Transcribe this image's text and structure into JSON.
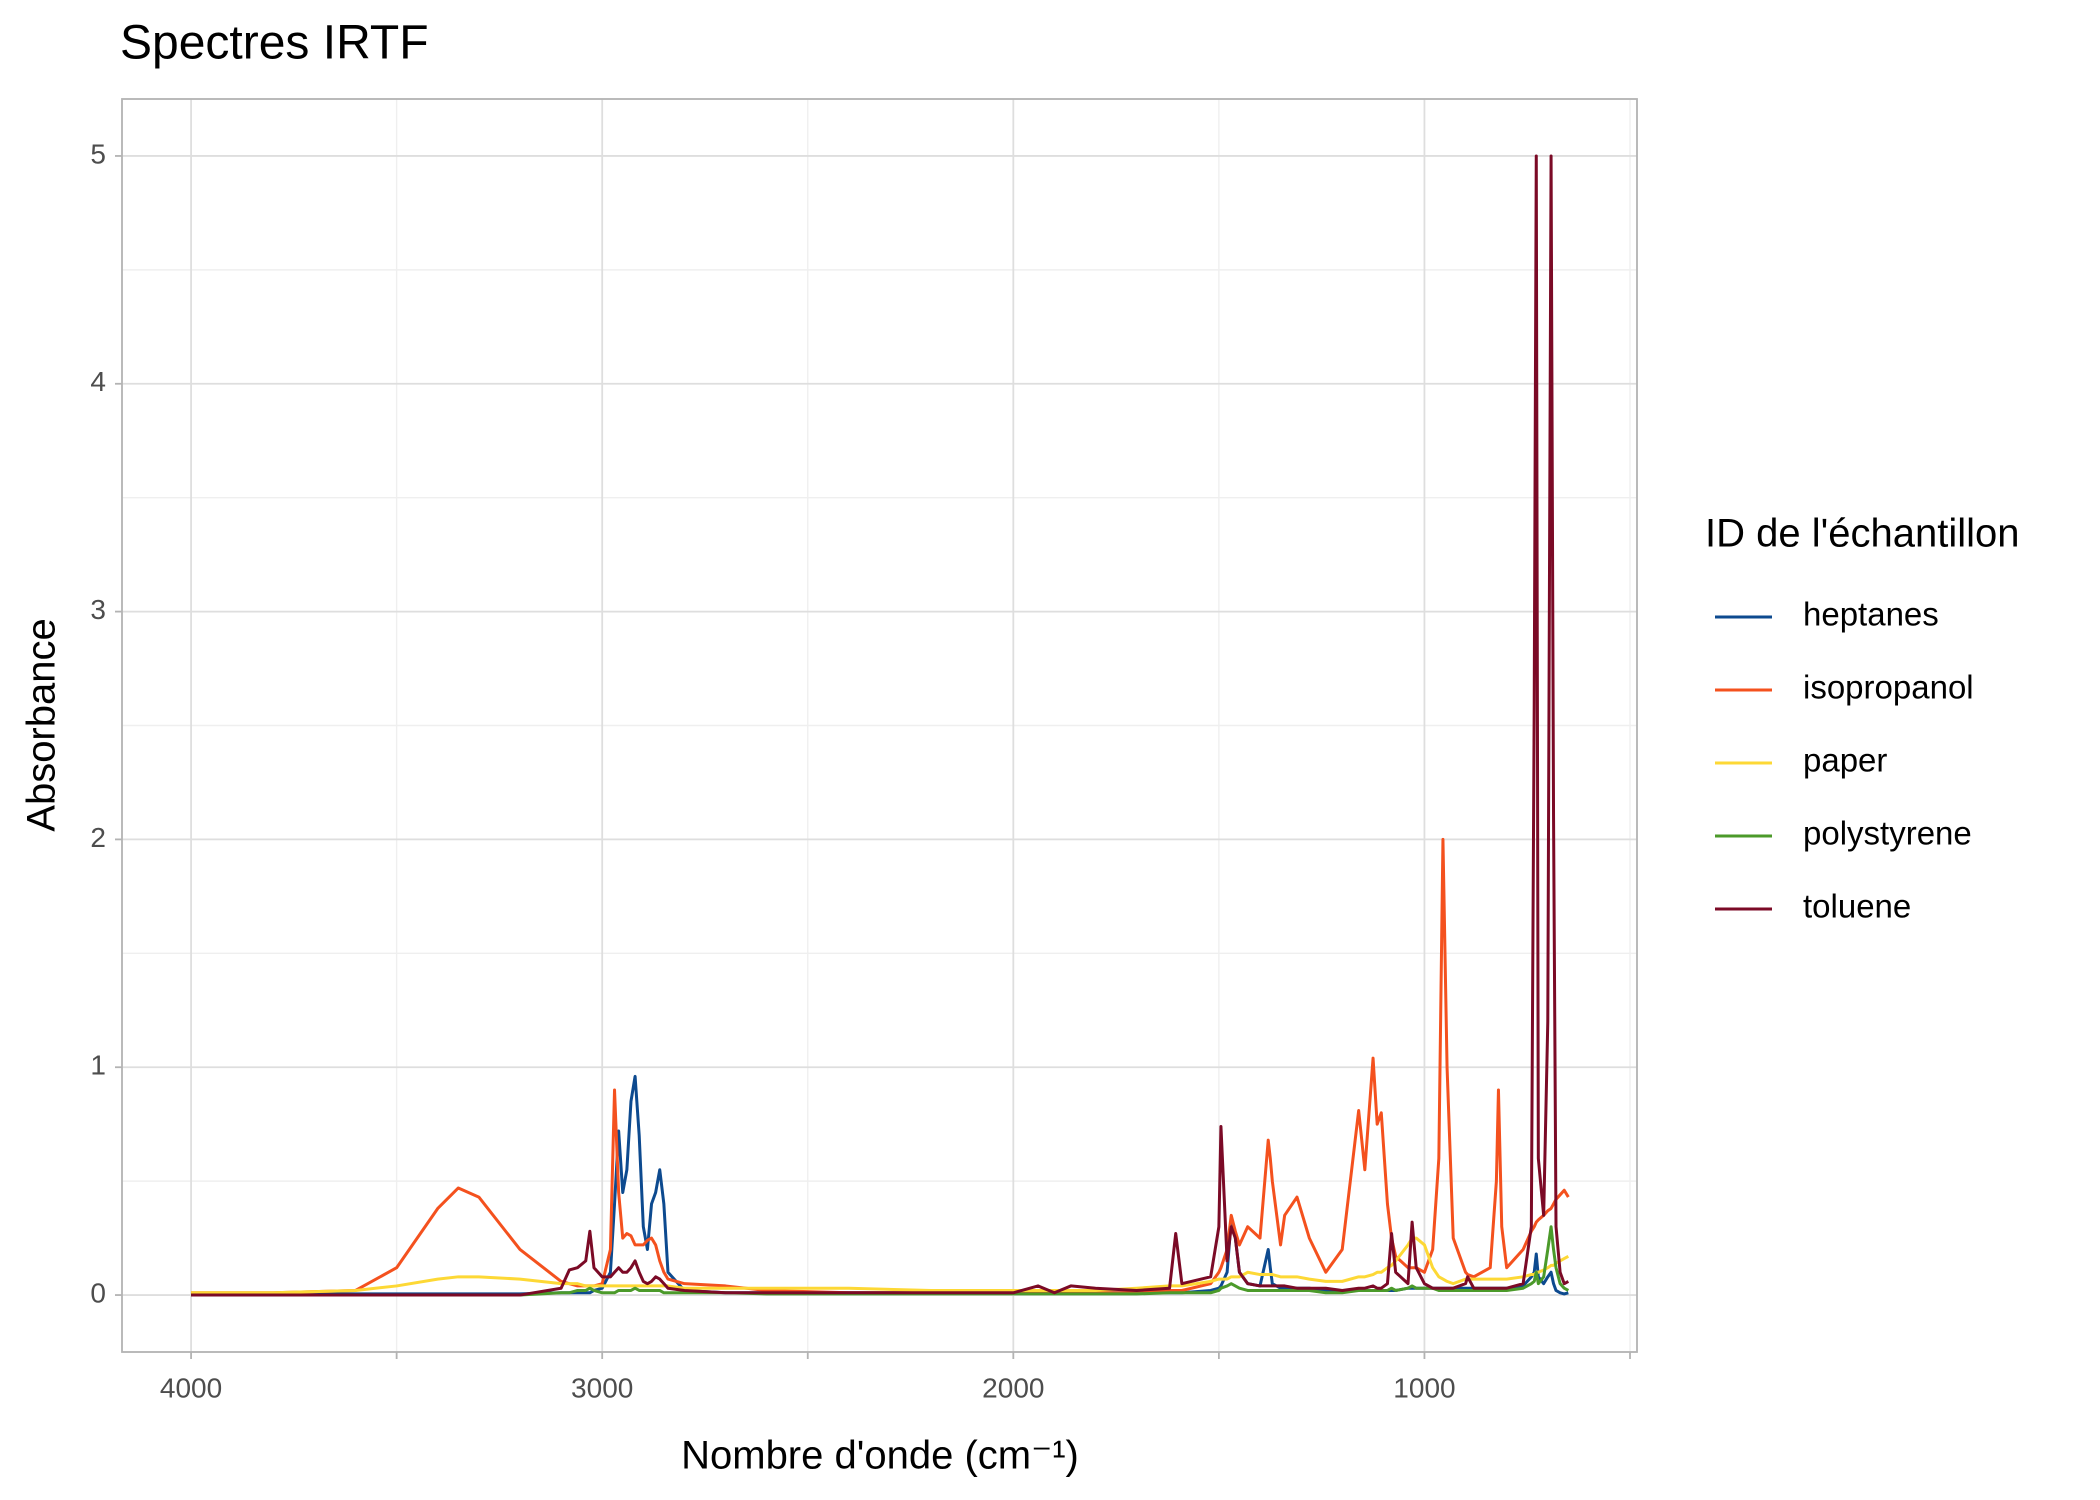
{
  "chart_data": {
    "type": "line",
    "title": "Spectres IRTF",
    "x_label": "Nombre d'onde (cm⁻¹)",
    "y_label": "Absorbance",
    "legend_title": "ID de l'échantillon",
    "legend": "right",
    "grid": true,
    "x_reversed": true,
    "xlim": [
      4168,
      483
    ],
    "ylim": [
      -0.25,
      5.25
    ],
    "xticks": [
      4000,
      3000,
      2000,
      1000
    ],
    "yticks": [
      0,
      1,
      2,
      3,
      4,
      5
    ],
    "x_minor_ticks": [
      3500,
      2500,
      1500,
      500
    ],
    "y_minor_ticks": [
      0.5,
      1.5,
      2.5,
      3.5,
      4.5
    ],
    "x": [
      4000,
      3800,
      3600,
      3500,
      3400,
      3350,
      3300,
      3200,
      3100,
      3080,
      3060,
      3040,
      3030,
      3020,
      3000,
      2980,
      2970,
      2960,
      2950,
      2940,
      2930,
      2920,
      2910,
      2900,
      2890,
      2880,
      2870,
      2860,
      2850,
      2840,
      2800,
      2700,
      2600,
      2400,
      2200,
      2000,
      1940,
      1900,
      1860,
      1800,
      1700,
      1620,
      1605,
      1590,
      1520,
      1500,
      1495,
      1480,
      1470,
      1460,
      1450,
      1430,
      1400,
      1380,
      1375,
      1370,
      1350,
      1340,
      1310,
      1280,
      1240,
      1200,
      1160,
      1145,
      1125,
      1115,
      1105,
      1090,
      1080,
      1070,
      1040,
      1030,
      1020,
      1000,
      980,
      965,
      955,
      945,
      930,
      900,
      895,
      880,
      840,
      825,
      820,
      812,
      800,
      760,
      740,
      733,
      728,
      723,
      710,
      700,
      692,
      686,
      680,
      670,
      660,
      650
    ],
    "series": [
      {
        "name": "heptanes",
        "color": "#0d4a8f",
        "values": [
          0.005,
          0.005,
          0.005,
          0.005,
          0.005,
          0.005,
          0.005,
          0.005,
          0.01,
          0.01,
          0.01,
          0.01,
          0.01,
          0.02,
          0.03,
          0.1,
          0.4,
          0.72,
          0.45,
          0.55,
          0.85,
          0.96,
          0.7,
          0.3,
          0.2,
          0.4,
          0.45,
          0.55,
          0.4,
          0.1,
          0.02,
          0.01,
          0.01,
          0.01,
          0.01,
          0.01,
          0.01,
          0.01,
          0.01,
          0.01,
          0.01,
          0.01,
          0.01,
          0.01,
          0.02,
          0.03,
          0.04,
          0.1,
          0.33,
          0.25,
          0.1,
          0.05,
          0.04,
          0.2,
          0.12,
          0.05,
          0.03,
          0.03,
          0.03,
          0.03,
          0.02,
          0.02,
          0.02,
          0.02,
          0.02,
          0.02,
          0.02,
          0.02,
          0.02,
          0.02,
          0.03,
          0.03,
          0.03,
          0.03,
          0.03,
          0.03,
          0.03,
          0.03,
          0.03,
          0.03,
          0.03,
          0.03,
          0.03,
          0.03,
          0.03,
          0.03,
          0.03,
          0.04,
          0.08,
          0.1,
          0.18,
          0.08,
          0.05,
          0.08,
          0.1,
          0.05,
          0.02,
          0.01,
          0.005,
          0.01
        ]
      },
      {
        "name": "isopropanol",
        "color": "#f4511e",
        "values": [
          0.01,
          0.01,
          0.02,
          0.12,
          0.38,
          0.47,
          0.43,
          0.2,
          0.06,
          0.05,
          0.04,
          0.04,
          0.04,
          0.04,
          0.05,
          0.2,
          0.9,
          0.45,
          0.25,
          0.27,
          0.26,
          0.22,
          0.22,
          0.22,
          0.24,
          0.25,
          0.22,
          0.15,
          0.1,
          0.07,
          0.05,
          0.04,
          0.02,
          0.01,
          0.01,
          0.01,
          0.01,
          0.01,
          0.01,
          0.01,
          0.01,
          0.02,
          0.02,
          0.02,
          0.05,
          0.1,
          0.12,
          0.2,
          0.35,
          0.28,
          0.22,
          0.3,
          0.25,
          0.68,
          0.6,
          0.5,
          0.22,
          0.35,
          0.43,
          0.25,
          0.1,
          0.2,
          0.81,
          0.55,
          1.04,
          0.75,
          0.8,
          0.4,
          0.25,
          0.17,
          0.12,
          0.12,
          0.12,
          0.1,
          0.2,
          0.6,
          2.0,
          1.0,
          0.25,
          0.1,
          0.09,
          0.08,
          0.12,
          0.5,
          0.9,
          0.3,
          0.12,
          0.2,
          0.28,
          0.3,
          0.32,
          0.33,
          0.35,
          0.37,
          0.38,
          0.4,
          0.42,
          0.44,
          0.46,
          0.43
        ]
      },
      {
        "name": "paper",
        "color": "#fdd835",
        "values": [
          0.01,
          0.01,
          0.02,
          0.04,
          0.07,
          0.08,
          0.08,
          0.07,
          0.05,
          0.05,
          0.05,
          0.04,
          0.04,
          0.04,
          0.04,
          0.04,
          0.04,
          0.04,
          0.04,
          0.04,
          0.04,
          0.04,
          0.04,
          0.04,
          0.04,
          0.04,
          0.04,
          0.04,
          0.04,
          0.04,
          0.03,
          0.03,
          0.03,
          0.03,
          0.02,
          0.02,
          0.02,
          0.02,
          0.02,
          0.02,
          0.03,
          0.04,
          0.04,
          0.04,
          0.06,
          0.07,
          0.07,
          0.07,
          0.08,
          0.08,
          0.08,
          0.1,
          0.09,
          0.09,
          0.09,
          0.09,
          0.08,
          0.08,
          0.08,
          0.07,
          0.06,
          0.06,
          0.08,
          0.08,
          0.09,
          0.1,
          0.1,
          0.12,
          0.13,
          0.15,
          0.22,
          0.25,
          0.25,
          0.22,
          0.12,
          0.08,
          0.07,
          0.06,
          0.05,
          0.07,
          0.07,
          0.07,
          0.07,
          0.07,
          0.07,
          0.07,
          0.07,
          0.08,
          0.09,
          0.09,
          0.1,
          0.1,
          0.11,
          0.12,
          0.13,
          0.13,
          0.14,
          0.15,
          0.16,
          0.17
        ]
      },
      {
        "name": "polystyrene",
        "color": "#4b9a2a",
        "values": [
          0,
          0,
          0,
          0,
          0,
          0,
          0,
          0,
          0.01,
          0.01,
          0.02,
          0.02,
          0.03,
          0.02,
          0.01,
          0.01,
          0.01,
          0.02,
          0.02,
          0.02,
          0.02,
          0.03,
          0.02,
          0.02,
          0.02,
          0.02,
          0.02,
          0.02,
          0.01,
          0.01,
          0.01,
          0.01,
          0.005,
          0.005,
          0.005,
          0.005,
          0.005,
          0.005,
          0.005,
          0.005,
          0.005,
          0.01,
          0.01,
          0.01,
          0.01,
          0.02,
          0.03,
          0.04,
          0.05,
          0.04,
          0.03,
          0.02,
          0.02,
          0.02,
          0.02,
          0.02,
          0.02,
          0.02,
          0.02,
          0.02,
          0.01,
          0.01,
          0.02,
          0.02,
          0.02,
          0.02,
          0.02,
          0.02,
          0.03,
          0.02,
          0.03,
          0.04,
          0.03,
          0.03,
          0.03,
          0.02,
          0.02,
          0.02,
          0.02,
          0.02,
          0.02,
          0.02,
          0.02,
          0.02,
          0.02,
          0.02,
          0.02,
          0.03,
          0.05,
          0.06,
          0.1,
          0.05,
          0.08,
          0.2,
          0.3,
          0.2,
          0.12,
          0.05,
          0.03,
          0.02
        ]
      },
      {
        "name": "toluene",
        "color": "#7b0a26",
        "values": [
          0,
          0,
          0,
          0,
          0,
          0,
          0,
          0,
          0.03,
          0.11,
          0.12,
          0.15,
          0.28,
          0.12,
          0.08,
          0.08,
          0.1,
          0.12,
          0.1,
          0.1,
          0.12,
          0.15,
          0.1,
          0.06,
          0.05,
          0.06,
          0.08,
          0.07,
          0.05,
          0.03,
          0.02,
          0.01,
          0.01,
          0.01,
          0.01,
          0.01,
          0.04,
          0.01,
          0.04,
          0.03,
          0.02,
          0.03,
          0.27,
          0.05,
          0.08,
          0.3,
          0.74,
          0.15,
          0.3,
          0.25,
          0.1,
          0.05,
          0.04,
          0.04,
          0.04,
          0.04,
          0.04,
          0.04,
          0.03,
          0.03,
          0.03,
          0.02,
          0.03,
          0.03,
          0.04,
          0.03,
          0.03,
          0.05,
          0.27,
          0.1,
          0.05,
          0.32,
          0.12,
          0.05,
          0.03,
          0.03,
          0.03,
          0.03,
          0.03,
          0.05,
          0.08,
          0.03,
          0.03,
          0.03,
          0.03,
          0.03,
          0.03,
          0.05,
          0.3,
          2.6,
          5.0,
          0.6,
          0.35,
          1.2,
          5.0,
          2.1,
          0.3,
          0.1,
          0.05,
          0.06
        ]
      }
    ]
  }
}
